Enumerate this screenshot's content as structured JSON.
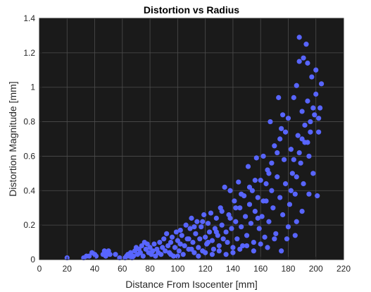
{
  "chart_data": {
    "type": "scatter",
    "title": "Distortion vs Radius",
    "xlabel": "Distance From Isocenter [mm]",
    "ylabel": "Distortion Magnitude [mm]",
    "xlim": [
      0,
      220
    ],
    "ylim": [
      0,
      1.4
    ],
    "xticks": [
      0,
      20,
      40,
      60,
      80,
      100,
      120,
      140,
      160,
      180,
      200,
      220
    ],
    "yticks": [
      0,
      0.2,
      0.4,
      0.6,
      0.8,
      1,
      1.2,
      1.4
    ],
    "xtick_labels": [
      "0",
      "20",
      "40",
      "60",
      "80",
      "100",
      "120",
      "140",
      "160",
      "180",
      "200",
      "220"
    ],
    "ytick_labels": [
      "0",
      "0.2",
      "0.4",
      "0.6",
      "0.8",
      "1",
      "1.2",
      "1.4"
    ],
    "grid": true,
    "colors": {
      "plot_bg": "#1a1a1a",
      "grid": "#4d4d4d",
      "marker": "#5865ff",
      "axis": "#262626"
    },
    "points": [
      [
        20,
        0.01
      ],
      [
        32,
        0.01
      ],
      [
        34,
        0.02
      ],
      [
        36,
        0.02
      ],
      [
        38,
        0.04
      ],
      [
        40,
        0.03
      ],
      [
        41,
        0.02
      ],
      [
        46,
        0.03
      ],
      [
        47,
        0.05
      ],
      [
        48,
        0.02
      ],
      [
        49,
        0.04
      ],
      [
        50,
        0.05
      ],
      [
        51,
        0.03
      ],
      [
        55,
        0.03
      ],
      [
        58,
        0.01
      ],
      [
        62,
        0.01
      ],
      [
        63,
        0.02
      ],
      [
        64,
        0.03
      ],
      [
        65,
        0.02
      ],
      [
        66,
        0.04
      ],
      [
        67,
        0.01
      ],
      [
        68,
        0.02
      ],
      [
        69,
        0.05
      ],
      [
        70,
        0.07
      ],
      [
        71,
        0.03
      ],
      [
        72,
        0.06
      ],
      [
        73,
        0.04
      ],
      [
        74,
        0.08
      ],
      [
        75,
        0.02
      ],
      [
        76,
        0.1
      ],
      [
        77,
        0.06
      ],
      [
        78,
        0.09
      ],
      [
        79,
        0.04
      ],
      [
        80,
        0.07
      ],
      [
        81,
        0.03
      ],
      [
        82,
        0.05
      ],
      [
        83,
        0.09
      ],
      [
        84,
        0.02
      ],
      [
        85,
        0.06
      ],
      [
        86,
        0.04
      ],
      [
        87,
        0.1
      ],
      [
        88,
        0.03
      ],
      [
        89,
        0.07
      ],
      [
        90,
        0.12
      ],
      [
        91,
        0.05
      ],
      [
        92,
        0.15
      ],
      [
        93,
        0.08
      ],
      [
        94,
        0.04
      ],
      [
        95,
        0.1
      ],
      [
        96,
        0.13
      ],
      [
        97,
        0.02
      ],
      [
        98,
        0.07
      ],
      [
        99,
        0.16
      ],
      [
        100,
        0.11
      ],
      [
        101,
        0.05
      ],
      [
        102,
        0.09
      ],
      [
        103,
        0.14
      ],
      [
        104,
        0.03
      ],
      [
        105,
        0.08
      ],
      [
        106,
        0.2
      ],
      [
        107,
        0.12
      ],
      [
        108,
        0.06
      ],
      [
        109,
        0.18
      ],
      [
        110,
        0.24
      ],
      [
        111,
        0.1
      ],
      [
        112,
        0.04
      ],
      [
        113,
        0.15
      ],
      [
        114,
        0.22
      ],
      [
        115,
        0.07
      ],
      [
        116,
        0.12
      ],
      [
        117,
        0.19
      ],
      [
        118,
        0.05
      ],
      [
        119,
        0.26
      ],
      [
        120,
        0.13
      ],
      [
        121,
        0.09
      ],
      [
        122,
        0.21
      ],
      [
        123,
        0.16
      ],
      [
        124,
        0.27
      ],
      [
        125,
        0.11
      ],
      [
        126,
        0.06
      ],
      [
        127,
        0.18
      ],
      [
        128,
        0.24
      ],
      [
        129,
        0.14
      ],
      [
        130,
        0.08
      ],
      [
        131,
        0.3
      ],
      [
        132,
        0.2
      ],
      [
        133,
        0.12
      ],
      [
        134,
        0.42
      ],
      [
        135,
        0.16
      ],
      [
        136,
        0.1
      ],
      [
        137,
        0.26
      ],
      [
        138,
        0.4
      ],
      [
        139,
        0.18
      ],
      [
        140,
        0.07
      ],
      [
        141,
        0.34
      ],
      [
        142,
        0.22
      ],
      [
        143,
        0.12
      ],
      [
        144,
        0.45
      ],
      [
        145,
        0.3
      ],
      [
        146,
        0.19
      ],
      [
        147,
        0.08
      ],
      [
        148,
        0.37
      ],
      [
        149,
        0.25
      ],
      [
        150,
        0.14
      ],
      [
        151,
        0.54
      ],
      [
        152,
        0.32
      ],
      [
        153,
        0.21
      ],
      [
        154,
        0.4
      ],
      [
        155,
        0.1
      ],
      [
        156,
        0.28
      ],
      [
        157,
        0.59
      ],
      [
        158,
        0.36
      ],
      [
        159,
        0.18
      ],
      [
        160,
        0.46
      ],
      [
        161,
        0.25
      ],
      [
        162,
        0.6
      ],
      [
        163,
        0.13
      ],
      [
        164,
        0.34
      ],
      [
        165,
        0.52
      ],
      [
        166,
        0.22
      ],
      [
        167,
        0.8
      ],
      [
        168,
        0.4
      ],
      [
        169,
        0.3
      ],
      [
        170,
        0.66
      ],
      [
        171,
        0.15
      ],
      [
        172,
        0.48
      ],
      [
        173,
        0.94
      ],
      [
        174,
        0.36
      ],
      [
        175,
        0.76
      ],
      [
        176,
        0.26
      ],
      [
        177,
        0.58
      ],
      [
        178,
        0.44
      ],
      [
        179,
        0.12
      ],
      [
        180,
        0.82
      ],
      [
        181,
        0.32
      ],
      [
        182,
        0.64
      ],
      [
        183,
        0.5
      ],
      [
        184,
        0.94
      ],
      [
        185,
        0.38
      ],
      [
        186,
        0.22
      ],
      [
        187,
        0.72
      ],
      [
        188,
        1.29
      ],
      [
        189,
        0.56
      ],
      [
        190,
        0.86
      ],
      [
        191,
        0.44
      ],
      [
        192,
        0.68
      ],
      [
        193,
        1.25
      ],
      [
        194,
        0.92
      ],
      [
        195,
        0.6
      ],
      [
        196,
        0.8
      ],
      [
        197,
        1.06
      ],
      [
        198,
        0.5
      ],
      [
        199,
        0.84
      ],
      [
        200,
        1.1
      ],
      [
        201,
        0.37
      ],
      [
        202,
        0.74
      ],
      [
        203,
        0.88
      ],
      [
        204,
        1.02
      ],
      [
        95,
        0.03
      ],
      [
        100,
        0.02
      ],
      [
        110,
        0.06
      ],
      [
        115,
        0.02
      ],
      [
        120,
        0.04
      ],
      [
        125,
        0.03
      ],
      [
        130,
        0.05
      ],
      [
        135,
        0.03
      ],
      [
        140,
        0.04
      ],
      [
        145,
        0.06
      ],
      [
        150,
        0.08
      ],
      [
        155,
        0.05
      ],
      [
        160,
        0.09
      ],
      [
        165,
        0.07
      ],
      [
        170,
        0.12
      ],
      [
        175,
        0.05
      ],
      [
        180,
        0.19
      ],
      [
        185,
        0.14
      ],
      [
        190,
        0.28
      ],
      [
        195,
        0.38
      ],
      [
        102,
        0.17
      ],
      [
        108,
        0.12
      ],
      [
        112,
        0.19
      ],
      [
        118,
        0.22
      ],
      [
        122,
        0.1
      ],
      [
        128,
        0.16
      ],
      [
        132,
        0.28
      ],
      [
        138,
        0.24
      ],
      [
        142,
        0.3
      ],
      [
        146,
        0.38
      ],
      [
        152,
        0.42
      ],
      [
        156,
        0.46
      ],
      [
        158,
        0.24
      ],
      [
        162,
        0.34
      ],
      [
        164,
        0.44
      ],
      [
        166,
        0.5
      ],
      [
        168,
        0.56
      ],
      [
        172,
        0.62
      ],
      [
        174,
        0.7
      ],
      [
        176,
        0.84
      ],
      [
        178,
        0.74
      ],
      [
        182,
        0.4
      ],
      [
        184,
        0.58
      ],
      [
        186,
        0.48
      ],
      [
        188,
        0.62
      ],
      [
        190,
        0.7
      ],
      [
        192,
        0.78
      ],
      [
        194,
        0.68
      ],
      [
        196,
        0.74
      ],
      [
        198,
        0.88
      ],
      [
        200,
        0.96
      ],
      [
        202,
        0.82
      ],
      [
        186,
        1.01
      ],
      [
        194,
        1.14
      ],
      [
        191,
        1.17
      ],
      [
        188,
        1.15
      ]
    ]
  }
}
